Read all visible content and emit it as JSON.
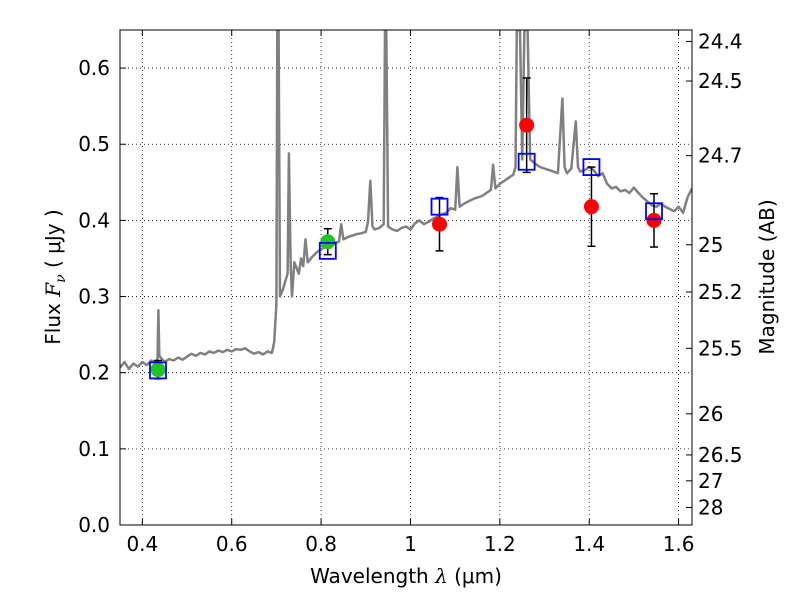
{
  "chart_data": {
    "type": "scatter",
    "xlabel": "Wavelength  λ (μm)",
    "ylabel": "Flux  F_ν  ( μJy )",
    "ylabel_parts": {
      "pre": "Flux  ",
      "var": "F",
      "sub": "ν",
      "post": "  ( μJy )"
    },
    "xlabel_parts": {
      "pre": "Wavelength  ",
      "var": "λ",
      "post": " (μm)"
    },
    "y2label": "Magnitude (AB)",
    "xlim": [
      0.35,
      1.63
    ],
    "ylim": [
      0.0,
      0.65
    ],
    "grid": true,
    "x_ticks": [
      {
        "value": 0.4,
        "label": "0.4"
      },
      {
        "value": 0.6,
        "label": "0.6"
      },
      {
        "value": 0.8,
        "label": "0.8"
      },
      {
        "value": 1.0,
        "label": "1"
      },
      {
        "value": 1.2,
        "label": "1.2"
      },
      {
        "value": 1.4,
        "label": "1.4"
      },
      {
        "value": 1.6,
        "label": "1.6"
      }
    ],
    "y_ticks": [
      {
        "value": 0.0,
        "label": "0.0"
      },
      {
        "value": 0.1,
        "label": "0.1"
      },
      {
        "value": 0.2,
        "label": "0.2"
      },
      {
        "value": 0.3,
        "label": "0.3"
      },
      {
        "value": 0.4,
        "label": "0.4"
      },
      {
        "value": 0.5,
        "label": "0.5"
      },
      {
        "value": 0.6,
        "label": "0.6"
      }
    ],
    "y2_ticks": [
      {
        "label": "24.4",
        "flux": 0.635
      },
      {
        "label": "24.5",
        "flux": 0.583
      },
      {
        "label": "24.7",
        "flux": 0.485
      },
      {
        "label": "25",
        "flux": 0.368
      },
      {
        "label": "25.2",
        "flux": 0.306
      },
      {
        "label": "25.5",
        "flux": 0.232
      },
      {
        "label": "26",
        "flux": 0.146
      },
      {
        "label": "26.5",
        "flux": 0.092
      },
      {
        "label": "27",
        "flux": 0.058
      },
      {
        "label": "28",
        "flux": 0.023
      }
    ],
    "spectrum": {
      "color": "#808080",
      "points": [
        [
          0.35,
          0.207
        ],
        [
          0.36,
          0.214
        ],
        [
          0.37,
          0.205
        ],
        [
          0.38,
          0.212
        ],
        [
          0.39,
          0.208
        ],
        [
          0.4,
          0.214
        ],
        [
          0.41,
          0.21
        ],
        [
          0.42,
          0.216
        ],
        [
          0.43,
          0.214
        ],
        [
          0.434,
          0.218
        ],
        [
          0.436,
          0.282
        ],
        [
          0.438,
          0.222
        ],
        [
          0.45,
          0.214
        ],
        [
          0.46,
          0.218
        ],
        [
          0.47,
          0.216
        ],
        [
          0.48,
          0.22
        ],
        [
          0.49,
          0.217
        ],
        [
          0.5,
          0.221
        ],
        [
          0.51,
          0.225
        ],
        [
          0.52,
          0.222
        ],
        [
          0.53,
          0.226
        ],
        [
          0.54,
          0.224
        ],
        [
          0.55,
          0.228
        ],
        [
          0.56,
          0.226
        ],
        [
          0.57,
          0.229
        ],
        [
          0.58,
          0.227
        ],
        [
          0.59,
          0.23
        ],
        [
          0.6,
          0.228
        ],
        [
          0.61,
          0.231
        ],
        [
          0.62,
          0.23
        ],
        [
          0.63,
          0.232
        ],
        [
          0.64,
          0.228
        ],
        [
          0.65,
          0.225
        ],
        [
          0.66,
          0.227
        ],
        [
          0.67,
          0.224
        ],
        [
          0.68,
          0.228
        ],
        [
          0.69,
          0.226
        ],
        [
          0.695,
          0.24
        ],
        [
          0.7,
          0.29
        ],
        [
          0.702,
          0.65
        ],
        [
          0.705,
          0.65
        ],
        [
          0.708,
          0.3
        ],
        [
          0.715,
          0.31
        ],
        [
          0.72,
          0.32
        ],
        [
          0.725,
          0.33
        ],
        [
          0.728,
          0.488
        ],
        [
          0.732,
          0.34
        ],
        [
          0.735,
          0.3
        ],
        [
          0.74,
          0.345
        ],
        [
          0.75,
          0.33
        ],
        [
          0.755,
          0.35
        ],
        [
          0.76,
          0.34
        ],
        [
          0.765,
          0.375
        ],
        [
          0.77,
          0.345
        ],
        [
          0.78,
          0.352
        ],
        [
          0.79,
          0.358
        ],
        [
          0.8,
          0.362
        ],
        [
          0.81,
          0.366
        ],
        [
          0.82,
          0.364
        ],
        [
          0.83,
          0.37
        ],
        [
          0.84,
          0.372
        ],
        [
          0.845,
          0.395
        ],
        [
          0.85,
          0.375
        ],
        [
          0.86,
          0.378
        ],
        [
          0.87,
          0.38
        ],
        [
          0.88,
          0.382
        ],
        [
          0.89,
          0.383
        ],
        [
          0.9,
          0.385
        ],
        [
          0.905,
          0.398
        ],
        [
          0.91,
          0.452
        ],
        [
          0.915,
          0.392
        ],
        [
          0.92,
          0.388
        ],
        [
          0.93,
          0.39
        ],
        [
          0.94,
          0.395
        ],
        [
          0.943,
          0.65
        ],
        [
          0.946,
          0.65
        ],
        [
          0.95,
          0.392
        ],
        [
          0.96,
          0.388
        ],
        [
          0.97,
          0.386
        ],
        [
          0.98,
          0.39
        ],
        [
          0.99,
          0.392
        ],
        [
          1.0,
          0.388
        ],
        [
          1.01,
          0.396
        ],
        [
          1.02,
          0.4
        ],
        [
          1.03,
          0.395
        ],
        [
          1.04,
          0.398
        ],
        [
          1.05,
          0.402
        ],
        [
          1.06,
          0.405
        ],
        [
          1.07,
          0.408
        ],
        [
          1.08,
          0.41
        ],
        [
          1.09,
          0.416
        ],
        [
          1.1,
          0.414
        ],
        [
          1.105,
          0.47
        ],
        [
          1.11,
          0.418
        ],
        [
          1.12,
          0.422
        ],
        [
          1.13,
          0.425
        ],
        [
          1.14,
          0.428
        ],
        [
          1.15,
          0.43
        ],
        [
          1.16,
          0.432
        ],
        [
          1.17,
          0.436
        ],
        [
          1.18,
          0.44
        ],
        [
          1.185,
          0.473
        ],
        [
          1.19,
          0.442
        ],
        [
          1.2,
          0.448
        ],
        [
          1.21,
          0.452
        ],
        [
          1.22,
          0.456
        ],
        [
          1.23,
          0.46
        ],
        [
          1.235,
          0.47
        ],
        [
          1.238,
          0.65
        ],
        [
          1.245,
          0.65
        ],
        [
          1.25,
          0.48
        ],
        [
          1.255,
          0.65
        ],
        [
          1.262,
          0.65
        ],
        [
          1.268,
          0.48
        ],
        [
          1.28,
          0.474
        ],
        [
          1.29,
          0.47
        ],
        [
          1.3,
          0.468
        ],
        [
          1.31,
          0.466
        ],
        [
          1.32,
          0.464
        ],
        [
          1.33,
          0.462
        ],
        [
          1.34,
          0.56
        ],
        [
          1.345,
          0.47
        ],
        [
          1.35,
          0.462
        ],
        [
          1.36,
          0.468
        ],
        [
          1.37,
          0.53
        ],
        [
          1.375,
          0.47
        ],
        [
          1.38,
          0.464
        ],
        [
          1.39,
          0.466
        ],
        [
          1.4,
          0.47
        ],
        [
          1.41,
          0.466
        ],
        [
          1.42,
          0.458
        ],
        [
          1.43,
          0.462
        ],
        [
          1.44,
          0.448
        ],
        [
          1.45,
          0.442
        ],
        [
          1.46,
          0.444
        ],
        [
          1.47,
          0.438
        ],
        [
          1.48,
          0.44
        ],
        [
          1.49,
          0.436
        ],
        [
          1.5,
          0.443
        ],
        [
          1.51,
          0.436
        ],
        [
          1.52,
          0.43
        ],
        [
          1.53,
          0.425
        ],
        [
          1.54,
          0.42
        ],
        [
          1.55,
          0.418
        ],
        [
          1.56,
          0.422
        ],
        [
          1.57,
          0.418
        ],
        [
          1.58,
          0.415
        ],
        [
          1.59,
          0.412
        ],
        [
          1.6,
          0.418
        ],
        [
          1.61,
          0.41
        ],
        [
          1.62,
          0.43
        ],
        [
          1.63,
          0.442
        ]
      ]
    },
    "series": [
      {
        "marker": "filled-circle",
        "color": "#22c322",
        "points": [
          {
            "x": 0.435,
            "y": 0.204,
            "err_low": 0.012,
            "err_high": 0.012
          },
          {
            "x": 0.815,
            "y": 0.372,
            "err_low": 0.017,
            "err_high": 0.017
          }
        ]
      },
      {
        "marker": "filled-circle",
        "color": "#ff0000",
        "points": [
          {
            "x": 1.065,
            "y": 0.395,
            "err_low": 0.035,
            "err_high": 0.035
          },
          {
            "x": 1.26,
            "y": 0.525,
            "err_low": 0.062,
            "err_high": 0.062
          },
          {
            "x": 1.405,
            "y": 0.418,
            "err_low": 0.052,
            "err_high": 0.052
          },
          {
            "x": 1.545,
            "y": 0.4,
            "err_low": 0.035,
            "err_high": 0.035
          }
        ]
      },
      {
        "marker": "open-square",
        "color": "#0000ff",
        "points": [
          {
            "x": 0.435,
            "y": 0.203
          },
          {
            "x": 0.815,
            "y": 0.36
          },
          {
            "x": 1.065,
            "y": 0.418
          },
          {
            "x": 1.26,
            "y": 0.477
          },
          {
            "x": 1.405,
            "y": 0.47
          },
          {
            "x": 1.545,
            "y": 0.412
          }
        ]
      }
    ]
  }
}
